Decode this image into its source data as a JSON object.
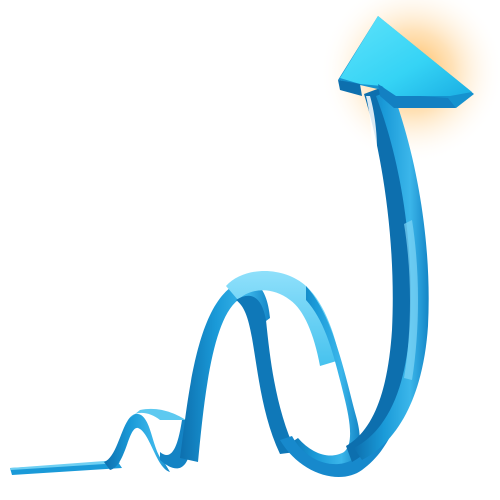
{
  "illustration": {
    "subject": "rising-arrow-ribbon",
    "icon": "trend-up-arrow-icon",
    "colors": {
      "ribbon_top": "#46c2ee",
      "ribbon_face": "#1a9ad8",
      "ribbon_dark": "#0d6fae",
      "ribbon_light": "#8fe0fb",
      "head_top": "#35d3f5",
      "head_side": "#1592cf",
      "glow_core": "#ffb347",
      "glow_edge": "#ffffff"
    }
  }
}
